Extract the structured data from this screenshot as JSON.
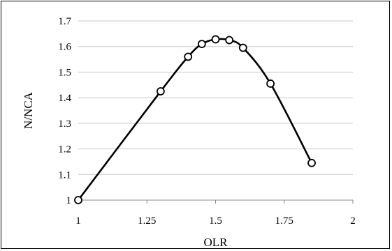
{
  "chart_data": {
    "type": "line",
    "title": "",
    "xlabel": "OLR",
    "ylabel": "N/NCA",
    "xlim": [
      1,
      2
    ],
    "ylim": [
      1,
      1.7
    ],
    "x_ticks": [
      "1",
      "1.25",
      "1.5",
      "1.75",
      "2"
    ],
    "y_ticks": [
      "1",
      "1.1",
      "1.2",
      "1.3",
      "1.4",
      "1.5",
      "1.6",
      "1.7"
    ],
    "grid": "horizontal",
    "legend": "none",
    "series": [
      {
        "x": [
          1.0,
          1.3,
          1.4,
          1.45,
          1.5,
          1.55,
          1.6,
          1.7,
          1.85
        ],
        "y": [
          1.0,
          1.425,
          1.56,
          1.61,
          1.628,
          1.625,
          1.595,
          1.455,
          1.145
        ],
        "color": "#000000",
        "marker": "circle-open",
        "smooth": true
      }
    ]
  }
}
